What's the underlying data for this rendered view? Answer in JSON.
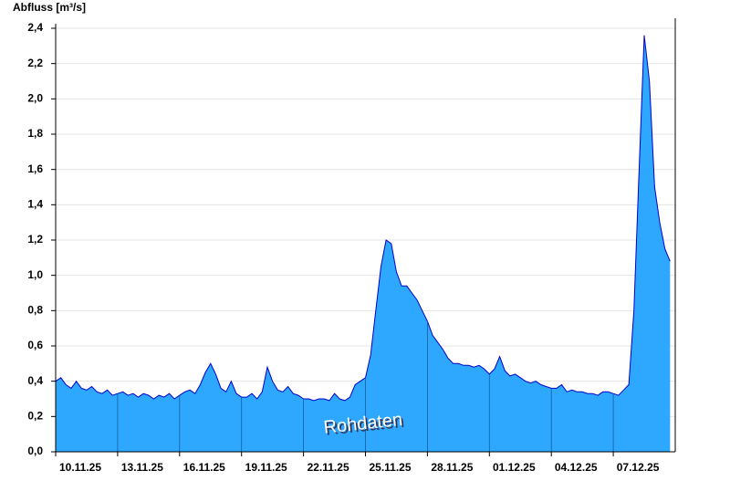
{
  "chart_data": {
    "type": "area",
    "title": "Abfluss [m³/s]",
    "annotation": "Rohdaten",
    "color": "#2ea8ff",
    "line_color": "#0000cc",
    "grid": true,
    "categories": [
      "10.11.25",
      null,
      null,
      null,
      null,
      null,
      null,
      null,
      null,
      null,
      null,
      null,
      "13.11.25",
      null,
      null,
      null,
      null,
      null,
      null,
      null,
      null,
      null,
      null,
      null,
      "16.11.25",
      null,
      null,
      null,
      null,
      null,
      null,
      null,
      null,
      null,
      null,
      null,
      "19.11.25",
      null,
      null,
      null,
      null,
      null,
      null,
      null,
      null,
      null,
      null,
      null,
      "22.11.25",
      null,
      null,
      null,
      null,
      null,
      null,
      null,
      null,
      null,
      null,
      null,
      "25.11.25",
      null,
      null,
      null,
      null,
      null,
      null,
      null,
      null,
      null,
      null,
      null,
      "28.11.25",
      null,
      null,
      null,
      null,
      null,
      null,
      null,
      null,
      null,
      null,
      null,
      "01.12.25",
      null,
      null,
      null,
      null,
      null,
      null,
      null,
      null,
      null,
      null,
      null,
      "04.12.25",
      null,
      null,
      null,
      null,
      null,
      null,
      null,
      null,
      null,
      null,
      null,
      "07.12.25",
      null,
      null,
      null,
      null,
      null,
      null,
      null,
      null,
      null,
      null,
      null
    ],
    "values": [
      0.4,
      0.42,
      0.38,
      0.36,
      0.4,
      0.36,
      0.35,
      0.37,
      0.34,
      0.33,
      0.35,
      0.32,
      0.33,
      0.34,
      0.32,
      0.33,
      0.31,
      0.33,
      0.32,
      0.3,
      0.32,
      0.31,
      0.33,
      0.3,
      0.32,
      0.34,
      0.35,
      0.33,
      0.38,
      0.45,
      0.5,
      0.44,
      0.36,
      0.34,
      0.4,
      0.33,
      0.31,
      0.31,
      0.33,
      0.3,
      0.34,
      0.48,
      0.4,
      0.35,
      0.34,
      0.37,
      0.33,
      0.32,
      0.3,
      0.3,
      0.29,
      0.3,
      0.3,
      0.29,
      0.33,
      0.3,
      0.29,
      0.31,
      0.38,
      0.4,
      0.42,
      0.55,
      0.8,
      1.05,
      1.2,
      1.18,
      1.02,
      0.94,
      0.94,
      0.9,
      0.86,
      0.8,
      0.74,
      0.66,
      0.62,
      0.58,
      0.53,
      0.5,
      0.5,
      0.49,
      0.49,
      0.48,
      0.49,
      0.47,
      0.44,
      0.47,
      0.54,
      0.46,
      0.43,
      0.44,
      0.42,
      0.4,
      0.39,
      0.4,
      0.38,
      0.37,
      0.36,
      0.36,
      0.38,
      0.34,
      0.35,
      0.34,
      0.34,
      0.33,
      0.33,
      0.32,
      0.34,
      0.34,
      0.33,
      0.32,
      0.35,
      0.38,
      0.8,
      1.6,
      2.36,
      2.1,
      1.5,
      1.3,
      1.15,
      1.08
    ],
    "ylim": [
      0,
      2.4
    ],
    "yticks": [
      {
        "value": 0,
        "label": "0,0"
      },
      {
        "value": 0.2,
        "label": "0,2"
      },
      {
        "value": 0.4,
        "label": "0,4"
      },
      {
        "value": 0.6,
        "label": "0,6"
      },
      {
        "value": 0.8,
        "label": "0,8"
      },
      {
        "value": 1.0,
        "label": "1,0"
      },
      {
        "value": 1.2,
        "label": "1,2"
      },
      {
        "value": 1.4,
        "label": "1,4"
      },
      {
        "value": 1.6,
        "label": "1,6"
      },
      {
        "value": 1.8,
        "label": "1,8"
      },
      {
        "value": 2.0,
        "label": "2,0"
      },
      {
        "value": 2.2,
        "label": "2,2"
      },
      {
        "value": 2.4,
        "label": "2,4"
      }
    ]
  }
}
